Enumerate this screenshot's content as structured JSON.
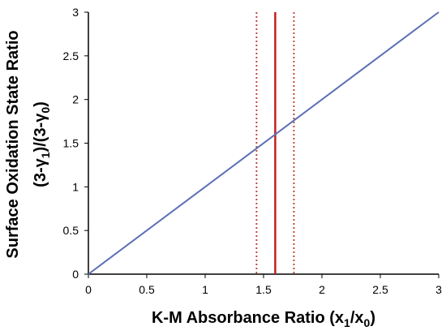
{
  "chart_data": {
    "type": "line",
    "xlabel": "K-M Absorbance Ratio (x",
    "xlabel_sub1": "1",
    "xlabel_mid": "/x",
    "xlabel_sub2": "0",
    "xlabel_end": ")",
    "ylabel_line1": "Surface Oxidation State Ratio",
    "ylabel_line2_a": "(3-γ",
    "ylabel_line2_sub1": "1",
    "ylabel_line2_b": ")/(3-γ",
    "ylabel_line2_sub2": "0",
    "ylabel_line2_c": ")",
    "xlim": [
      0,
      3
    ],
    "ylim": [
      0,
      3
    ],
    "xticks": [
      "0",
      "0.5",
      "1",
      "1.5",
      "2",
      "2.5",
      "3"
    ],
    "yticks": [
      "0",
      "0.5",
      "1",
      "1.5",
      "2",
      "2.5",
      "3"
    ],
    "grid": false,
    "series": [
      {
        "x": [
          0,
          3
        ],
        "y": [
          0,
          3
        ],
        "color": "#5b6fb6"
      }
    ],
    "vlines": [
      {
        "x": 1.44,
        "style": "dotted",
        "color": "#c0392b"
      },
      {
        "x": 1.6,
        "style": "solid",
        "color": "#c0201e"
      },
      {
        "x": 1.76,
        "style": "dotted",
        "color": "#c0392b"
      }
    ]
  }
}
